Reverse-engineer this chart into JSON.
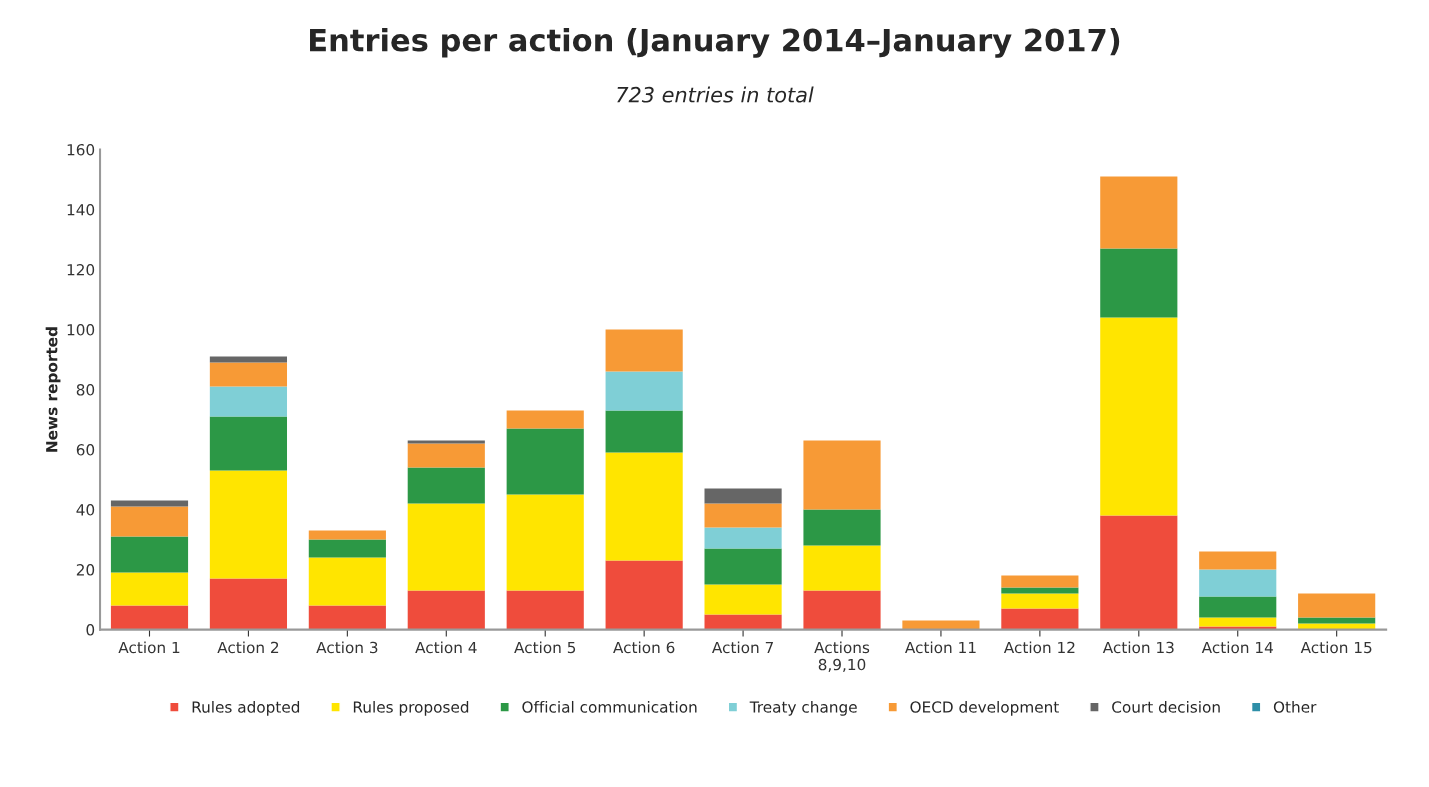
{
  "chart_data": {
    "type": "bar",
    "title": "Entries per action (January 2014–January 2017)",
    "subtitle": "723 entries in total",
    "ylabel": "News reported",
    "categories": [
      "Action 1",
      "Action 2",
      "Action 3",
      "Action 4",
      "Action 5",
      "Action 6",
      "Action 7",
      "Actions\n8,9,10",
      "Action 11",
      "Action 12",
      "Action 13",
      "Action 14",
      "Action 15"
    ],
    "stacked": true,
    "ylim": [
      0,
      160
    ],
    "yticks": [
      0,
      20,
      40,
      60,
      80,
      100,
      120,
      140,
      160
    ],
    "grid": false,
    "legend": "bottom",
    "series": [
      {
        "name": "Rules adopted",
        "color": "#ef4c3c",
        "values": [
          8,
          17,
          8,
          13,
          13,
          23,
          5,
          13,
          0,
          7,
          38,
          1,
          0
        ]
      },
      {
        "name": "Rules proposed",
        "color": "#ffe500",
        "values": [
          11,
          36,
          16,
          29,
          32,
          36,
          10,
          15,
          0,
          5,
          66,
          3,
          2
        ]
      },
      {
        "name": "Official communication",
        "color": "#2c9846",
        "values": [
          12,
          18,
          6,
          12,
          22,
          14,
          12,
          12,
          0,
          2,
          23,
          7,
          2
        ]
      },
      {
        "name": "Treaty change",
        "color": "#7fcfd6",
        "values": [
          0,
          10,
          0,
          0,
          0,
          13,
          7,
          0,
          0,
          0,
          0,
          9,
          0
        ]
      },
      {
        "name": "OECD development",
        "color": "#f79a36",
        "values": [
          10,
          8,
          3,
          8,
          6,
          14,
          8,
          23,
          3,
          4,
          24,
          6,
          8
        ]
      },
      {
        "name": "Court decision",
        "color": "#666666",
        "values": [
          2,
          2,
          0,
          1,
          0,
          0,
          5,
          0,
          0,
          0,
          0,
          0,
          0
        ]
      },
      {
        "name": "Other",
        "color": "#2e8fa8",
        "values": [
          0,
          0,
          0,
          0,
          0,
          0,
          0,
          0,
          0,
          0,
          0,
          0,
          0
        ]
      }
    ]
  }
}
